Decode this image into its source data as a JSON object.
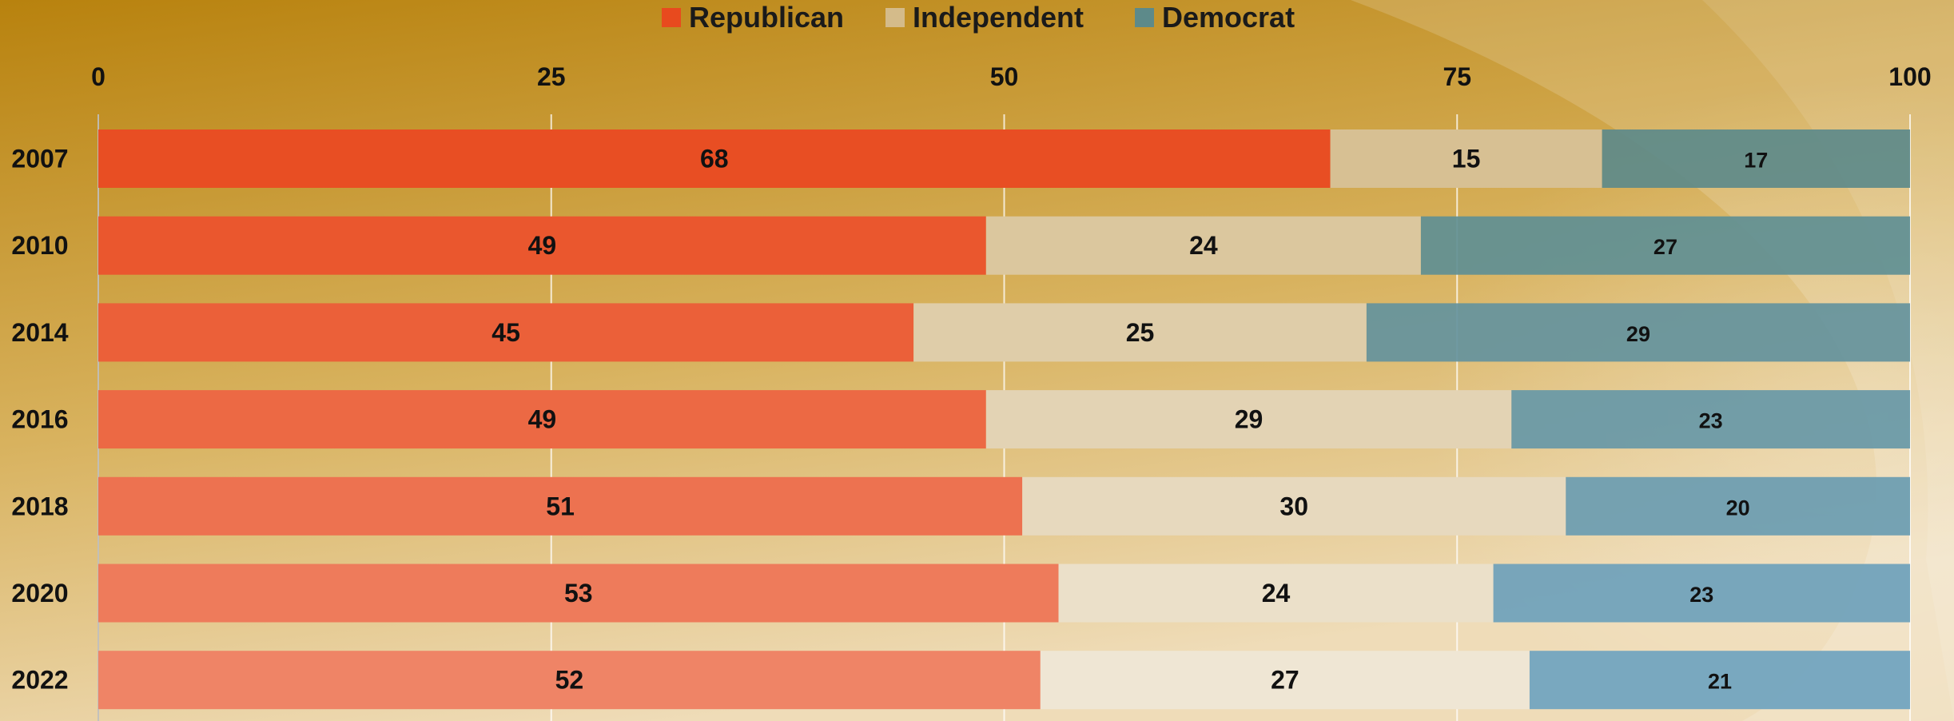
{
  "chart_data": {
    "type": "bar",
    "orientation": "horizontal",
    "stacked": true,
    "title": "",
    "xlabel": "",
    "ylabel": "",
    "xlim": [
      0,
      100
    ],
    "x_ticks": [
      "0",
      "25",
      "50",
      "75",
      "100"
    ],
    "categories": [
      "2007",
      "2010",
      "2014",
      "2016",
      "2018",
      "2020",
      "2022"
    ],
    "legend_position": "top-center",
    "grid": true,
    "series": [
      {
        "name": "Republican",
        "color": "#e84a1e",
        "values": [
          68,
          49,
          45,
          49,
          51,
          53,
          52
        ]
      },
      {
        "name": "Independent",
        "color": "#d4bb8a",
        "values": [
          15,
          24,
          25,
          29,
          30,
          24,
          27
        ]
      },
      {
        "name": "Democrat",
        "color": "#5d8a8a",
        "values": [
          17,
          27,
          29,
          23,
          20,
          23,
          21
        ]
      }
    ]
  }
}
